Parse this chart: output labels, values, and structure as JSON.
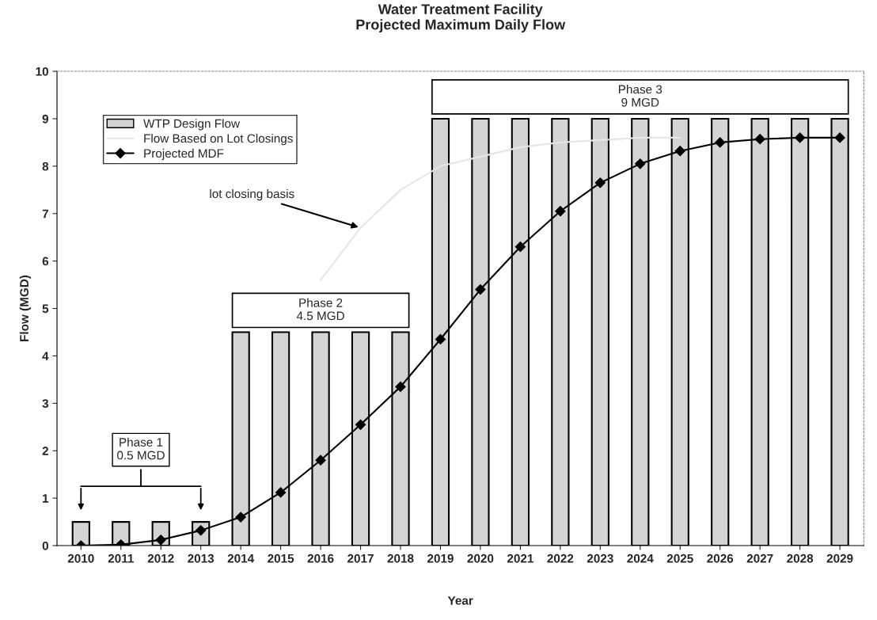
{
  "chart_data": {
    "type": "bar",
    "title": "Water Treatment Facility\nProjected Maximum Daily Flow",
    "xlabel": "Year",
    "ylabel": "Flow (MGD)",
    "categories": [
      "2010",
      "2011",
      "2012",
      "2013",
      "2014",
      "2015",
      "2016",
      "2017",
      "2018",
      "2019",
      "2020",
      "2021",
      "2022",
      "2023",
      "2024",
      "2025",
      "2026",
      "2027",
      "2028",
      "2029"
    ],
    "series": [
      {
        "name": "WTP Design Flow",
        "color": "#d4d4d4",
        "values": [
          0.5,
          0.5,
          0.5,
          0.5,
          4.5,
          4.5,
          4.5,
          4.5,
          4.5,
          9,
          9,
          9,
          9,
          9,
          9,
          9,
          9,
          9,
          9,
          9
        ]
      },
      {
        "name": "Flow Based on Lot Closings",
        "type": "line",
        "color": "#e6e6e6",
        "values": [
          null,
          null,
          null,
          null,
          null,
          null,
          5.6,
          6.7,
          7.5,
          8.0,
          8.2,
          8.4,
          8.5,
          8.55,
          8.6,
          8.6,
          null,
          null,
          null,
          null
        ]
      },
      {
        "name": "Projected MDF",
        "type": "line",
        "color": "#000000",
        "marker": "diamond",
        "values": [
          0,
          0.02,
          0.12,
          0.32,
          0.6,
          1.12,
          1.8,
          2.55,
          3.35,
          4.35,
          5.4,
          6.3,
          7.05,
          7.65,
          8.05,
          8.32,
          8.5,
          8.57,
          8.6,
          8.6
        ]
      }
    ],
    "ylim": [
      0,
      10
    ],
    "yticks": [
      0,
      1,
      2,
      3,
      4,
      5,
      6,
      7,
      8,
      9,
      10
    ],
    "grid": false,
    "legend": "top left",
    "annotations": [
      "Phase 1\n0.5 MGD",
      "Phase 2\n4.5 MGD",
      "Phase 3\n9 MGD",
      {
        "text": "lot closing basis",
        "x": "2017",
        "y": 6.7
      }
    ]
  }
}
